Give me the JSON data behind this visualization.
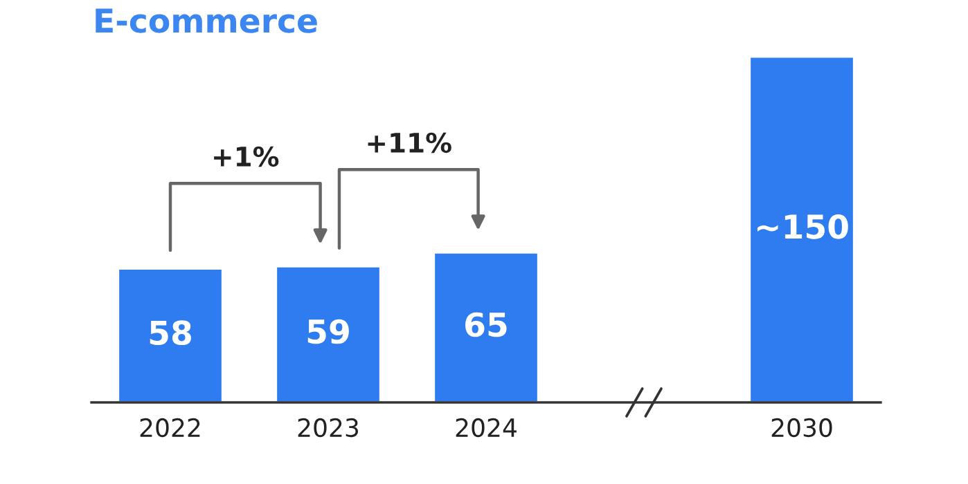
{
  "chart_data": {
    "type": "bar",
    "title": "E-commerce",
    "categories": [
      "2022",
      "2023",
      "2024",
      null,
      "2030"
    ],
    "values": [
      58,
      59,
      65,
      null,
      150
    ],
    "value_labels": [
      "58",
      "59",
      "65",
      null,
      "~150"
    ],
    "color": "#2f7cf0",
    "annotations": [
      "+1%",
      "+11%"
    ],
    "grid": false,
    "legend": false
  }
}
